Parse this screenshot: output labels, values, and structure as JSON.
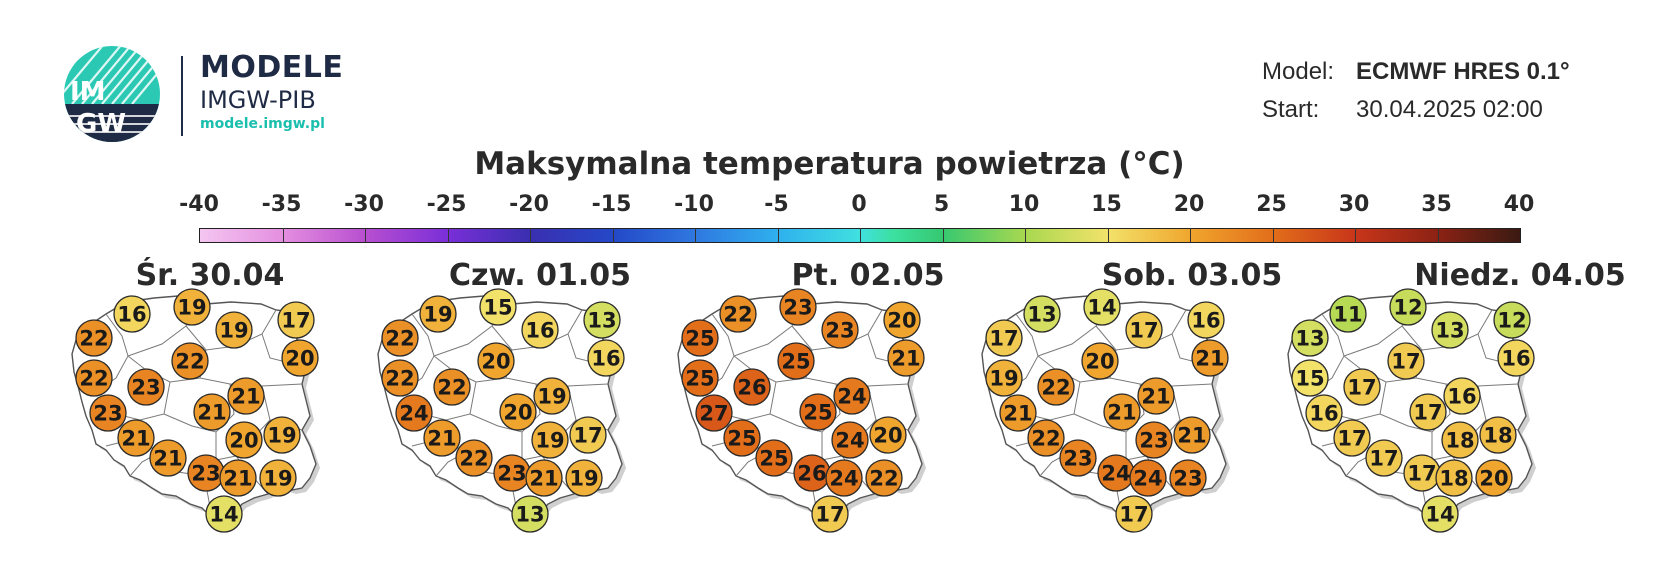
{
  "header": {
    "brand": {
      "title": "MODELE",
      "subtitle": "IMGW-PIB",
      "url": "modele.imgw.pl",
      "logo_text": [
        "IM",
        "GW"
      ]
    },
    "model_label": "Model:",
    "model_value": "ECMWF HRES 0.1°",
    "start_label": "Start:",
    "start_value": "30.04.2025 02:00"
  },
  "title": "Maksymalna temperatura powietrza (°C)",
  "scale": {
    "ticks": [
      -40,
      -35,
      -30,
      -25,
      -20,
      -15,
      -10,
      -5,
      0,
      5,
      10,
      15,
      20,
      25,
      30,
      35,
      40
    ],
    "min": -40,
    "max": 40
  },
  "days": [
    {
      "label": "Śr. 30.04",
      "values": [
        16,
        19,
        22,
        19,
        17,
        22,
        20,
        22,
        23,
        23,
        21,
        21,
        21,
        20,
        19,
        21,
        23,
        21,
        19,
        14
      ]
    },
    {
      "label": "Czw. 01.05",
      "values": [
        19,
        15,
        22,
        16,
        13,
        20,
        16,
        22,
        22,
        24,
        20,
        19,
        21,
        19,
        17,
        22,
        23,
        21,
        19,
        13
      ]
    },
    {
      "label": "Pt. 02.05",
      "values": [
        22,
        23,
        25,
        23,
        20,
        25,
        21,
        25,
        26,
        27,
        25,
        24,
        25,
        24,
        20,
        25,
        26,
        24,
        22,
        17
      ]
    },
    {
      "label": "Sob. 03.05",
      "values": [
        13,
        14,
        17,
        17,
        16,
        20,
        21,
        19,
        22,
        21,
        21,
        21,
        22,
        23,
        21,
        23,
        24,
        24,
        23,
        17
      ]
    },
    {
      "label": "Niedz. 04.05",
      "values": [
        11,
        12,
        13,
        13,
        12,
        17,
        16,
        15,
        17,
        16,
        17,
        16,
        17,
        18,
        18,
        17,
        17,
        18,
        20,
        14
      ]
    }
  ]
}
